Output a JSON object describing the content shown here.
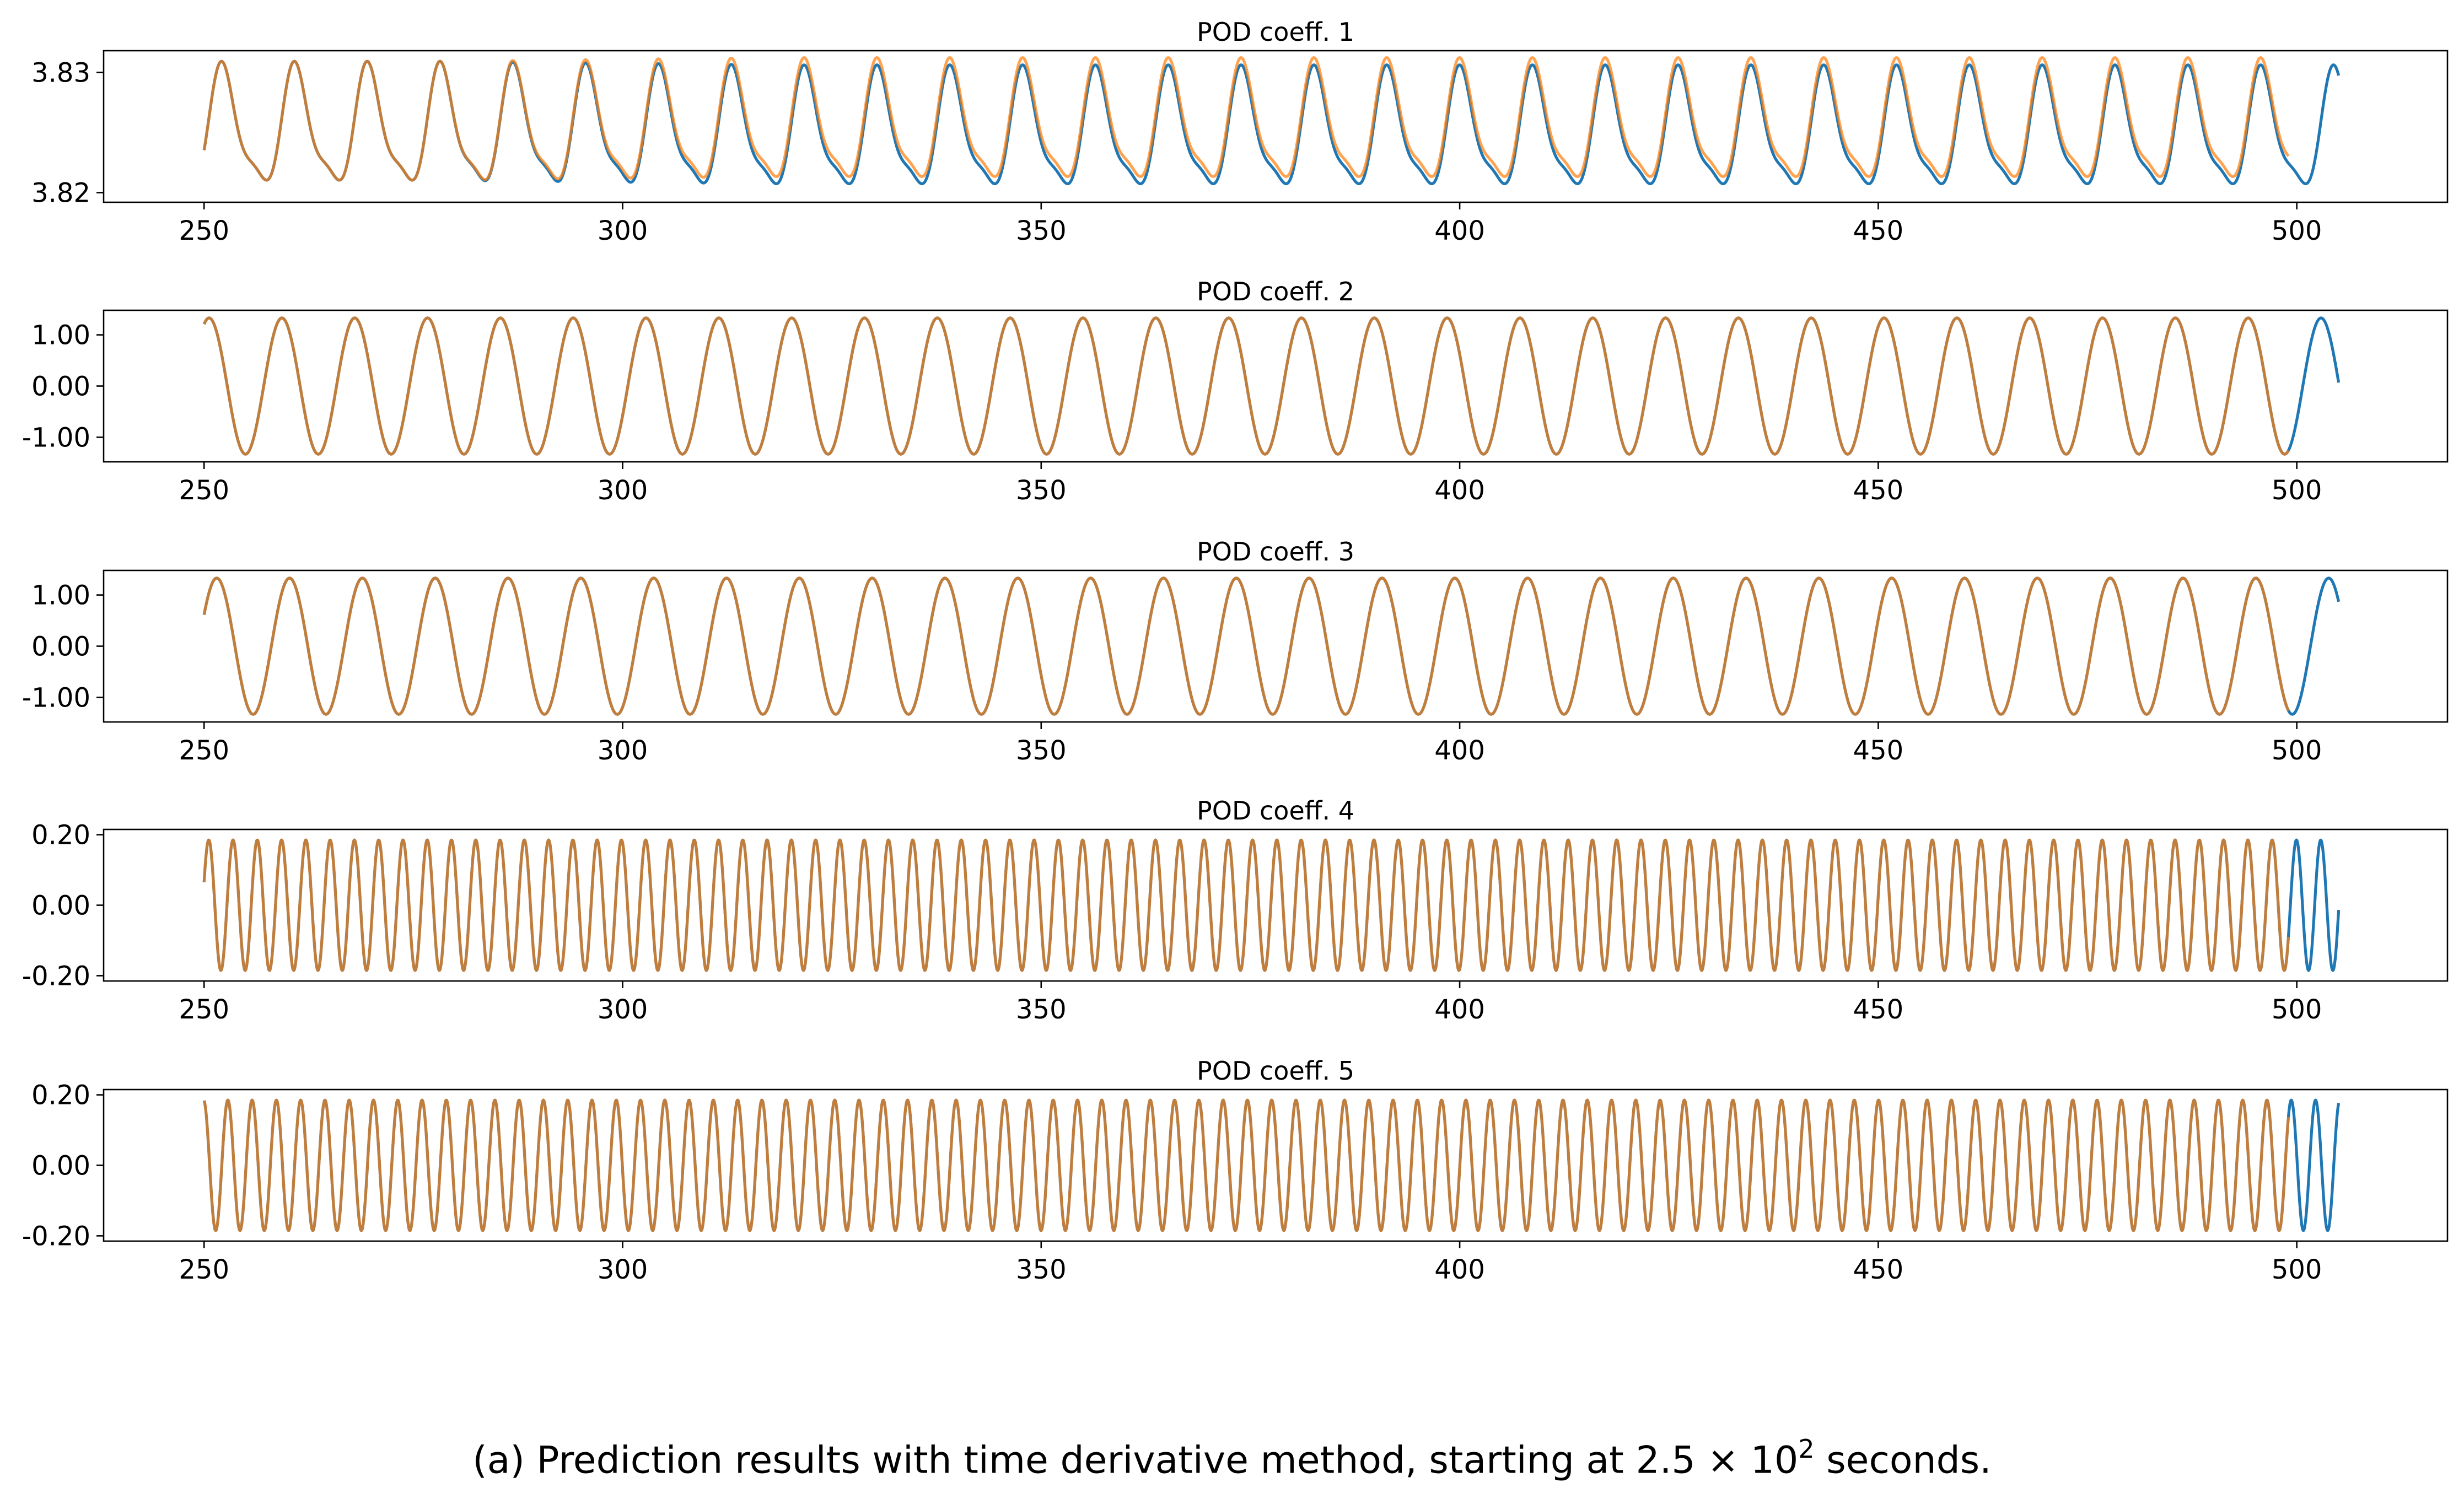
{
  "caption": {
    "prefix": "(a) Prediction results with time derivative method, starting at 2.5 × 10",
    "exponent": "2",
    "suffix": " seconds."
  },
  "colors": {
    "series_blue": "#1f77b4",
    "series_orange": "#ff7f0e",
    "axes": "#000000",
    "background": "#ffffff"
  },
  "chart_data": [
    {
      "type": "line",
      "title": "POD coeff. 1",
      "xlim": [
        238,
        518
      ],
      "ylim": [
        3.8192,
        3.8318
      ],
      "xticks": [
        250,
        300,
        350,
        400,
        450,
        500
      ],
      "yticks": [
        3.82,
        3.83
      ],
      "ytick_labels": [
        "3.82",
        "3.83"
      ],
      "grid": false,
      "series": [
        {
          "color": "#1f77b4",
          "x_range": [
            250,
            505
          ],
          "pattern": "two-harmonic oscillation, period ≈ 8.7 s, ~29 cycles",
          "max": 3.8304,
          "min": 3.8198
        },
        {
          "color": "#ff7f0e",
          "x_range": [
            250,
            499
          ],
          "pattern": "two-harmonic oscillation, period ≈ 8.7 s, ~29 cycles",
          "max": 3.8306,
          "min": 3.8204
        }
      ]
    },
    {
      "type": "line",
      "title": "POD coeff. 2",
      "xlim": [
        238,
        518
      ],
      "ylim": [
        -1.48,
        1.48
      ],
      "xticks": [
        250,
        300,
        350,
        400,
        450,
        500
      ],
      "yticks": [
        1.0,
        0.0,
        -1.0
      ],
      "ytick_labels": [
        "1.00",
        "0.00",
        "-1.00"
      ],
      "grid": false,
      "series": [
        {
          "color": "#1f77b4",
          "x_range": [
            250,
            505
          ],
          "amplitude": 1.33,
          "period": 8.7
        },
        {
          "color": "#ff7f0e",
          "x_range": [
            250,
            499
          ],
          "amplitude": 1.33,
          "period": 8.7
        }
      ]
    },
    {
      "type": "line",
      "title": "POD coeff. 3",
      "xlim": [
        238,
        518
      ],
      "ylim": [
        -1.48,
        1.48
      ],
      "xticks": [
        250,
        300,
        350,
        400,
        450,
        500
      ],
      "yticks": [
        1.0,
        0.0,
        -1.0
      ],
      "ytick_labels": [
        "1.00",
        "0.00",
        "-1.00"
      ],
      "grid": false,
      "series": [
        {
          "color": "#1f77b4",
          "x_range": [
            250,
            505
          ],
          "amplitude": 1.33,
          "period": 8.7
        },
        {
          "color": "#ff7f0e",
          "x_range": [
            250,
            499
          ],
          "amplitude": 1.33,
          "period": 8.7
        }
      ]
    },
    {
      "type": "line",
      "title": "POD coeff. 4",
      "xlim": [
        238,
        518
      ],
      "ylim": [
        -0.215,
        0.215
      ],
      "xticks": [
        250,
        300,
        350,
        400,
        450,
        500
      ],
      "yticks": [
        0.2,
        0.0,
        -0.2
      ],
      "ytick_labels": [
        "0.20",
        "0.00",
        "-0.20"
      ],
      "grid": false,
      "series": [
        {
          "color": "#1f77b4",
          "x_range": [
            250,
            505
          ],
          "amplitude": 0.185,
          "period": 2.9
        },
        {
          "color": "#ff7f0e",
          "x_range": [
            250,
            499
          ],
          "amplitude": 0.185,
          "period": 2.9
        }
      ]
    },
    {
      "type": "line",
      "title": "POD coeff. 5",
      "xlim": [
        238,
        518
      ],
      "ylim": [
        -0.215,
        0.215
      ],
      "xticks": [
        250,
        300,
        350,
        400,
        450,
        500
      ],
      "yticks": [
        0.2,
        0.0,
        -0.2
      ],
      "ytick_labels": [
        "0.20",
        "0.00",
        "-0.20"
      ],
      "grid": false,
      "series": [
        {
          "color": "#1f77b4",
          "x_range": [
            250,
            505
          ],
          "amplitude": 0.185,
          "period": 2.9
        },
        {
          "color": "#ff7f0e",
          "x_range": [
            250,
            499
          ],
          "amplitude": 0.185,
          "period": 2.9
        }
      ]
    }
  ]
}
